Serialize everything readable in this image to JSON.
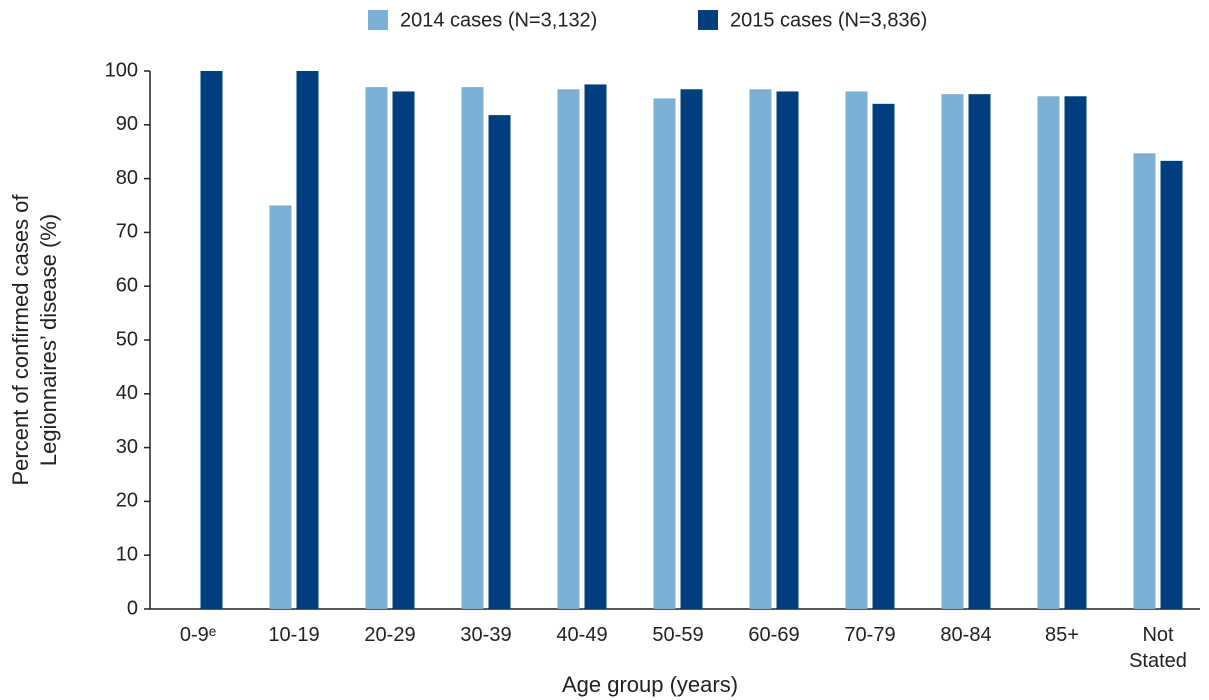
{
  "chart_data": {
    "type": "bar",
    "xlabel": "Age group (years)",
    "ylabel": [
      "Percent of confirmed cases of",
      "Legionnaires’ disease  (%)"
    ],
    "categories": [
      "0-9ᵉ",
      "10-19",
      "20-29",
      "30-39",
      "40-49",
      "50-59",
      "60-69",
      "70-79",
      "80-84",
      "85+",
      "Not Stated"
    ],
    "series": [
      {
        "name": "2014 cases (N=3,132)",
        "color": "#7bafd4",
        "values": [
          null,
          75,
          97,
          97,
          96.6,
          94.9,
          96.6,
          96.2,
          95.7,
          95.3,
          84.7
        ]
      },
      {
        "name": "2015 cases (N=3,836)",
        "color": "#003f7d",
        "values": [
          100,
          100,
          96.2,
          91.8,
          97.5,
          96.6,
          96.2,
          93.9,
          95.7,
          95.3,
          83.3
        ]
      }
    ],
    "ylim": [
      0,
      100
    ],
    "yticks": [
      0,
      10,
      20,
      30,
      40,
      50,
      60,
      70,
      80,
      90,
      100
    ],
    "grid": false,
    "legend": "top"
  }
}
